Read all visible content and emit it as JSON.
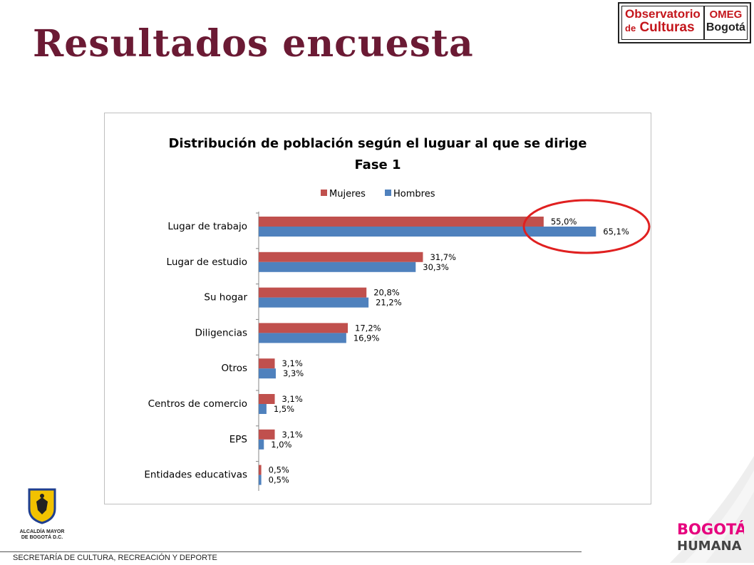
{
  "slide": {
    "title": "Resultados encuesta",
    "footer": "SECRETARÍA DE CULTURA, RECREACIÓN Y DEPORTE"
  },
  "logos": {
    "observatorio_line1": "Observatorio",
    "observatorio_line2_small": "de",
    "observatorio_line2": "Culturas",
    "omeg": "OMEG",
    "bogota": "Bogotá",
    "alcaldia_line1": "ALCALDÍA MAYOR",
    "alcaldia_line2": "DE BOGOTÁ D.C.",
    "bh_line1": "BOGOTÁ",
    "bh_line2": "HUMANA"
  },
  "colors": {
    "title": "#6b1a34",
    "mujeres": "#c0504d",
    "hombres": "#4f81bd",
    "highlight": "#e02020"
  },
  "chart_data": {
    "type": "bar",
    "orientation": "horizontal",
    "title": "Distribución de población según el luguar al que se dirige",
    "subtitle": "Fase 1",
    "legend_position": "top",
    "categories": [
      "Lugar de trabajo",
      "Lugar de estudio",
      "Su hogar",
      "Diligencias",
      "Otros",
      "Centros de comercio",
      "EPS",
      "Entidades educativas"
    ],
    "series": [
      {
        "name": "Mujeres",
        "color": "#c0504d",
        "values": [
          55.0,
          31.7,
          20.8,
          17.2,
          3.1,
          3.1,
          3.1,
          0.5
        ],
        "labels": [
          "55,0%",
          "31,7%",
          "20,8%",
          "17,2%",
          "3,1%",
          "3,1%",
          "3,1%",
          "0,5%"
        ]
      },
      {
        "name": "Hombres",
        "color": "#4f81bd",
        "values": [
          65.1,
          30.3,
          21.2,
          16.9,
          3.3,
          1.5,
          1.0,
          0.5
        ],
        "labels": [
          "65,1%",
          "30,3%",
          "21,2%",
          "16,9%",
          "3,3%",
          "1,5%",
          "1,0%",
          "0,5%"
        ]
      }
    ],
    "xlim": [
      0,
      75
    ],
    "grid": false,
    "highlight_category": "Lugar de trabajo"
  }
}
